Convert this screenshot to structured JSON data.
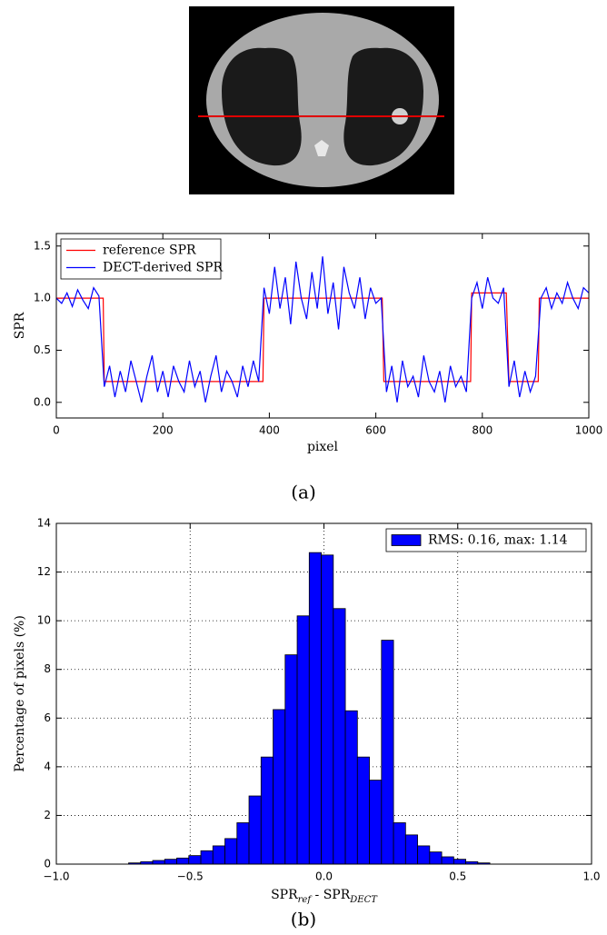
{
  "chart_data": [
    {
      "type": "line",
      "xlabel": "pixel",
      "ylabel": "SPR",
      "xlim": [
        0,
        1000
      ],
      "xticks": [
        0,
        200,
        400,
        600,
        800,
        1000
      ],
      "ylim": [
        -0.15,
        1.62
      ],
      "yticks": [
        {
          "value": 0,
          "label": "0.0"
        },
        {
          "value": 0.5,
          "label": "0.5"
        },
        {
          "value": 1,
          "label": "1.0"
        },
        {
          "value": 1.5,
          "label": "1.5"
        }
      ],
      "grid": false,
      "legend": "upper left",
      "x": [
        0,
        10,
        20,
        30,
        40,
        50,
        60,
        70,
        80,
        90,
        100,
        110,
        120,
        130,
        140,
        150,
        160,
        170,
        180,
        190,
        200,
        210,
        220,
        230,
        240,
        250,
        260,
        270,
        280,
        290,
        300,
        310,
        320,
        330,
        340,
        350,
        360,
        370,
        380,
        390,
        400,
        410,
        420,
        430,
        440,
        450,
        460,
        470,
        480,
        490,
        500,
        510,
        520,
        530,
        540,
        550,
        560,
        570,
        580,
        590,
        600,
        610,
        620,
        630,
        640,
        650,
        660,
        670,
        680,
        690,
        700,
        710,
        720,
        730,
        740,
        750,
        760,
        770,
        780,
        790,
        800,
        810,
        820,
        830,
        840,
        850,
        860,
        870,
        880,
        890,
        900,
        910,
        920,
        930,
        940,
        950,
        960,
        970,
        980,
        990,
        1000
      ],
      "series": [
        {
          "name": "reference SPR",
          "color": "#ff0000",
          "x": [
            0,
            88,
            90,
            388,
            390,
            612,
            615,
            778,
            780,
            845,
            850,
            905,
            907,
            1000
          ],
          "values": [
            1.0,
            1.0,
            0.2,
            0.2,
            1.0,
            1.0,
            0.2,
            0.2,
            1.05,
            1.05,
            0.2,
            0.2,
            1.0,
            1.0
          ]
        },
        {
          "name": "DECT-derived SPR",
          "color": "#0000ff",
          "values": [
            1.0,
            0.95,
            1.05,
            0.92,
            1.08,
            0.98,
            0.9,
            1.1,
            1.02,
            0.15,
            0.35,
            0.05,
            0.3,
            0.1,
            0.4,
            0.2,
            0.0,
            0.25,
            0.45,
            0.1,
            0.3,
            0.05,
            0.35,
            0.2,
            0.1,
            0.4,
            0.15,
            0.3,
            0.0,
            0.25,
            0.45,
            0.1,
            0.3,
            0.2,
            0.05,
            0.35,
            0.15,
            0.4,
            0.2,
            1.1,
            0.85,
            1.3,
            0.9,
            1.2,
            0.75,
            1.35,
            1.0,
            0.8,
            1.25,
            0.9,
            1.4,
            0.85,
            1.15,
            0.7,
            1.3,
            1.05,
            0.9,
            1.2,
            0.8,
            1.1,
            0.95,
            1.0,
            0.1,
            0.35,
            0.0,
            0.4,
            0.15,
            0.25,
            0.05,
            0.45,
            0.2,
            0.1,
            0.3,
            0.0,
            0.35,
            0.15,
            0.25,
            0.1,
            1.0,
            1.15,
            0.9,
            1.2,
            1.0,
            0.95,
            1.1,
            0.15,
            0.4,
            0.05,
            0.3,
            0.1,
            0.25,
            1.0,
            1.1,
            0.9,
            1.05,
            0.95,
            1.15,
            1.0,
            0.9,
            1.1,
            1.05
          ]
        }
      ]
    },
    {
      "type": "histogram",
      "xlabel": [
        "SPR",
        "ref",
        " - SPR",
        "DECT"
      ],
      "ylabel": "Percentage of pixels (%)",
      "xlim": [
        -1,
        1
      ],
      "xticks": [
        {
          "value": -1,
          "label": "−1.0"
        },
        {
          "value": -0.5,
          "label": "−0.5"
        },
        {
          "value": 0,
          "label": "0.0"
        },
        {
          "value": 0.5,
          "label": "0.5"
        },
        {
          "value": 1,
          "label": "1.0"
        }
      ],
      "ylim": [
        0,
        14
      ],
      "yticks": [
        0,
        2,
        4,
        6,
        8,
        10,
        12,
        14
      ],
      "grid": true,
      "legend": "upper right",
      "bins": [
        -0.73,
        -0.685,
        -0.64,
        -0.595,
        -0.55,
        -0.505,
        -0.46,
        -0.415,
        -0.37,
        -0.325,
        -0.28,
        -0.235,
        -0.19,
        -0.145,
        -0.1,
        -0.055,
        -0.01,
        0.035,
        0.08,
        0.125,
        0.17,
        0.215,
        0.26,
        0.305,
        0.35,
        0.395,
        0.44,
        0.485,
        0.53,
        0.575,
        0.62
      ],
      "series": [
        {
          "name": "RMS: 0.16, max: 1.14",
          "color": "#0000ff",
          "values": [
            0.05,
            0.1,
            0.15,
            0.2,
            0.25,
            0.35,
            0.55,
            0.75,
            1.05,
            1.7,
            2.8,
            4.4,
            6.35,
            8.6,
            10.2,
            12.8,
            12.7,
            10.5,
            6.3,
            4.4,
            3.45,
            9.2,
            1.7,
            1.2,
            0.75,
            0.5,
            0.3,
            0.2,
            0.1,
            0.05
          ]
        }
      ]
    }
  ],
  "captions": [
    "(a)",
    "(b)"
  ]
}
